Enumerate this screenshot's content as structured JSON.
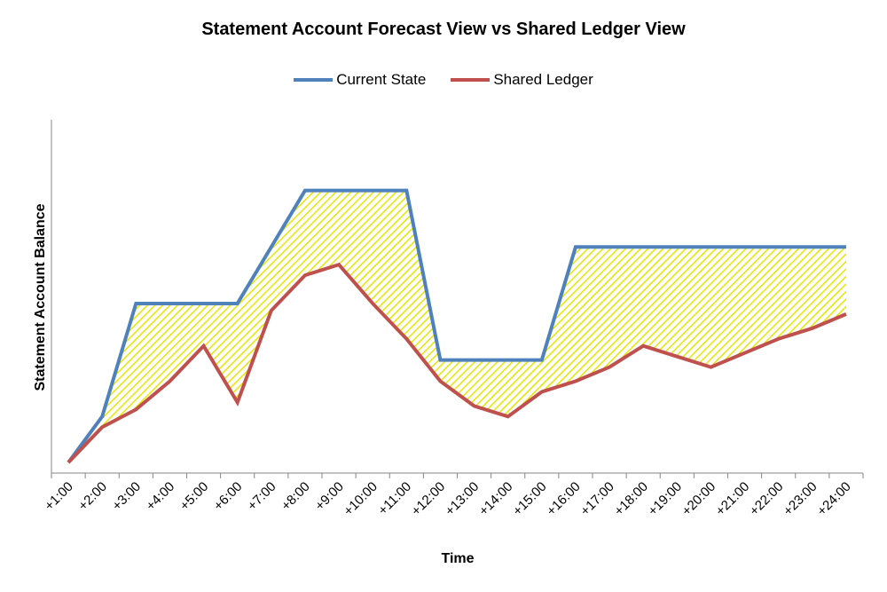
{
  "chart_data": {
    "type": "line",
    "title": "Statement Account Forecast View vs Shared Ledger View",
    "xlabel": "Time",
    "ylabel": "Statement Account Balance",
    "categories": [
      "+1:00",
      "+2:00",
      "+3:00",
      "+4:00",
      "+5:00",
      "+6:00",
      "+7:00",
      "+8:00",
      "+9:00",
      "+10:00",
      "+11:00",
      "+12:00",
      "+13:00",
      "+14:00",
      "+15:00",
      "+16:00",
      "+17:00",
      "+18:00",
      "+19:00",
      "+20:00",
      "+21:00",
      "+22:00",
      "+23:00",
      "+24:00"
    ],
    "ylim": [
      0,
      100
    ],
    "grid": false,
    "legend_position": "top",
    "difference_fill": {
      "color": "#FFFF00",
      "pattern": "diagonal-hatch"
    },
    "series": [
      {
        "name": "Current State",
        "color": "#4F81BD",
        "values": [
          3,
          16,
          48,
          48,
          48,
          48,
          64,
          80,
          80,
          80,
          80,
          32,
          32,
          32,
          32,
          64,
          64,
          64,
          64,
          64,
          64,
          64,
          64,
          64
        ]
      },
      {
        "name": "Shared Ledger",
        "color": "#C0504D",
        "values": [
          3,
          13,
          18,
          26,
          36,
          20,
          46,
          56,
          59,
          48,
          38,
          26,
          19,
          16,
          23,
          26,
          30,
          36,
          33,
          30,
          34,
          38,
          41,
          45
        ]
      }
    ]
  }
}
